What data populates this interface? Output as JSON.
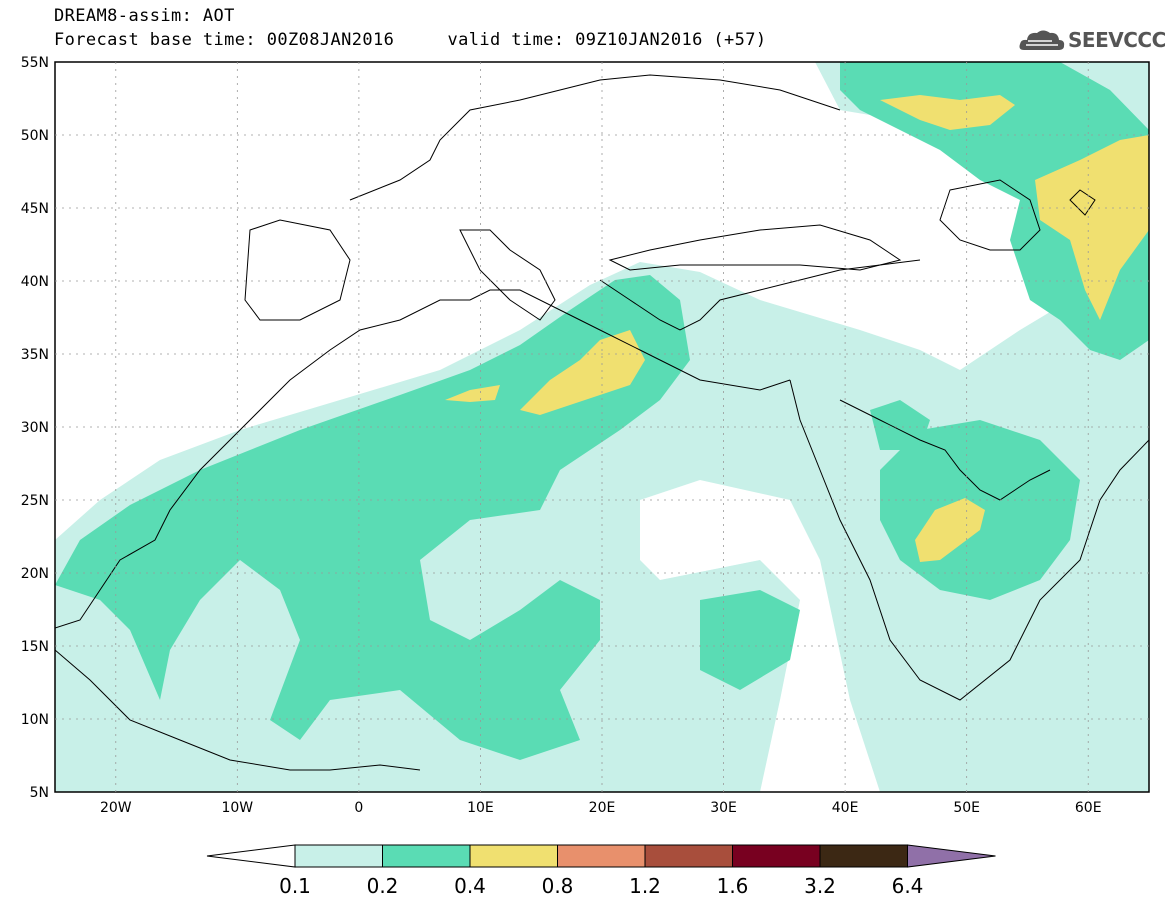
{
  "header": {
    "line1": "DREAM8-assim: AOT",
    "line2": "Forecast base time: 00Z08JAN2016     valid time: 09Z10JAN2016 (+57)",
    "logo_text": "SEEVCCC"
  },
  "map": {
    "lon_range": [
      -25,
      65
    ],
    "lat_range": [
      5,
      55
    ],
    "lat_labels": [
      "55N",
      "50N",
      "45N",
      "40N",
      "35N",
      "30N",
      "25N",
      "20N",
      "15N",
      "10N",
      "5N"
    ],
    "lon_labels": [
      "20W",
      "10W",
      "0",
      "10E",
      "20E",
      "30E",
      "40E",
      "50E",
      "60E"
    ],
    "grid": true
  },
  "colorbar": {
    "levels": [
      "0.1",
      "0.2",
      "0.4",
      "0.8",
      "1.2",
      "1.6",
      "3.2",
      "6.4"
    ],
    "colors": [
      "#ffffff",
      "#c8f0e8",
      "#5adcb4",
      "#f0e070",
      "#e8906c",
      "#a84e3c",
      "#780020",
      "#3c2814",
      "#9070a8"
    ]
  }
}
